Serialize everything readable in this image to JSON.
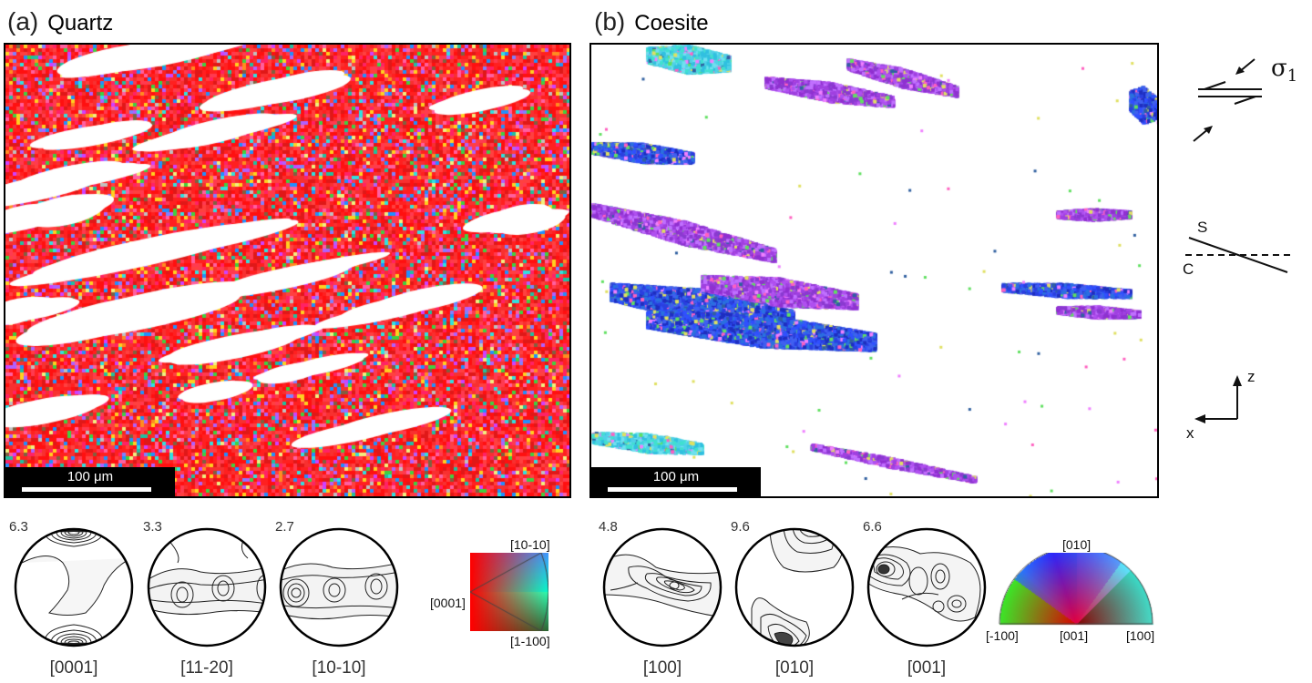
{
  "panels": {
    "a": {
      "letter": "(a)",
      "mineral": "Quartz",
      "scalebar": "100 μm"
    },
    "b": {
      "letter": "(b)",
      "mineral": "Coesite",
      "scalebar": "100 μm"
    }
  },
  "pole_figures": {
    "quartz": [
      {
        "max": "6.3",
        "axis": "[0001]"
      },
      {
        "max": "3.3",
        "axis": "[11-20]"
      },
      {
        "max": "2.7",
        "axis": "[10-10]"
      }
    ],
    "coesite": [
      {
        "max": "4.8",
        "axis": "[100]"
      },
      {
        "max": "9.6",
        "axis": "[010]"
      },
      {
        "max": "6.6",
        "axis": "[001]"
      }
    ]
  },
  "color_keys": {
    "quartz": {
      "top": "[10-10]",
      "left": "[0001]",
      "bottom": "[1-100]"
    },
    "coesite": {
      "top": "[010]",
      "left": "[-100]",
      "center": "[001]",
      "right": "[100]"
    }
  },
  "schematics": {
    "stress": {
      "symbol": "σ",
      "subscript": "1"
    },
    "foliation": {
      "s_label": "S",
      "c_label": "C"
    },
    "axes": {
      "z_label": "z",
      "x_label": "x"
    }
  },
  "colors": {
    "quartz_dominant": "#ff1e1e",
    "coesite_blue": "#2a3fe0",
    "coesite_purple": "#a040e0",
    "coesite_cyan": "#50d0e8"
  }
}
